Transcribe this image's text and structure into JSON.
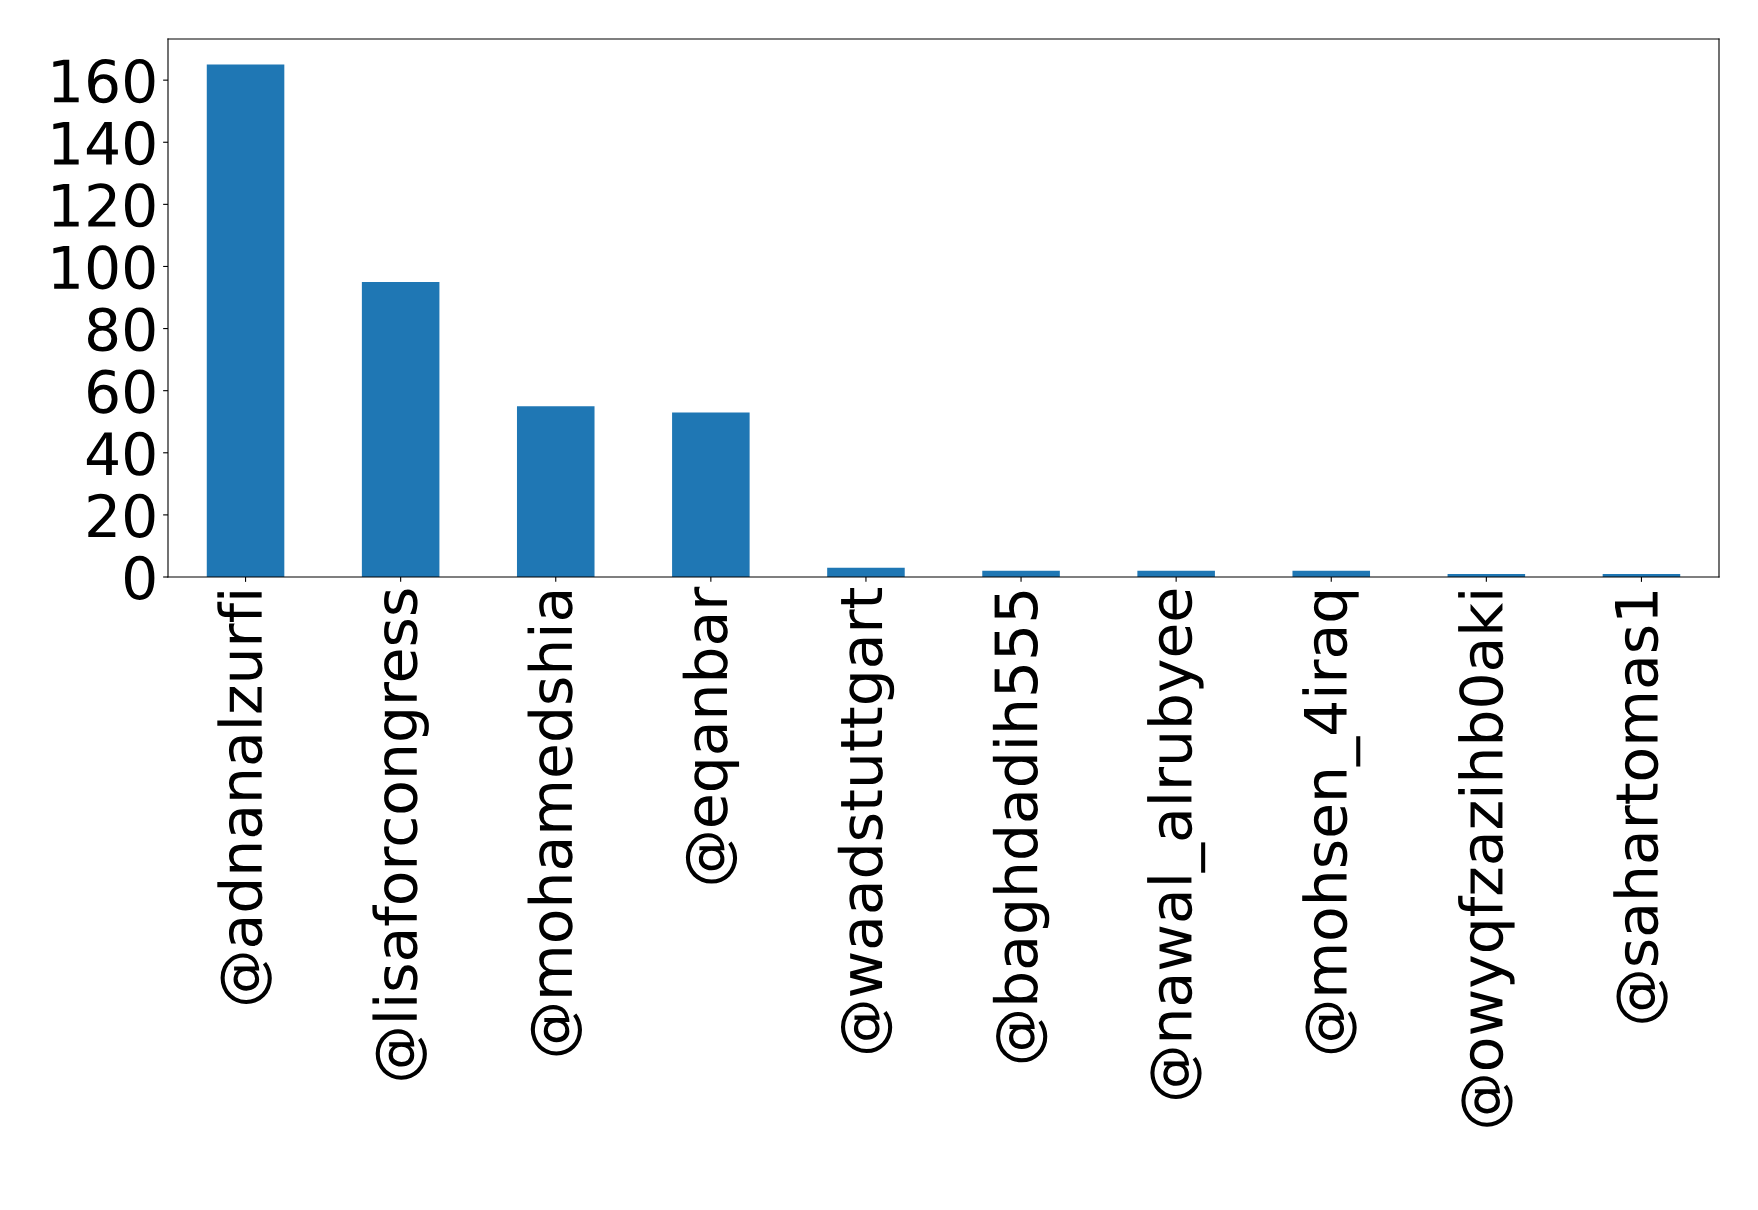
{
  "chart_data": {
    "type": "bar",
    "categories": [
      "@adnanalzurfi",
      "@lisaforcongress",
      "@mohamedshia",
      "@eqanbar",
      "@waadstuttgart",
      "@baghdadih555",
      "@nawal_alrubyee",
      "@mohsen_4iraq",
      "@owyqfzazihb0aki",
      "@sahartomas1"
    ],
    "values": [
      165,
      95,
      55,
      53,
      3,
      2,
      2,
      2,
      1,
      1
    ],
    "color": "#1f77b4",
    "ylim": [
      0,
      173.25
    ],
    "yticks": [
      0,
      20,
      40,
      60,
      80,
      100,
      120,
      140,
      160
    ],
    "grid": false,
    "legend": false
  }
}
